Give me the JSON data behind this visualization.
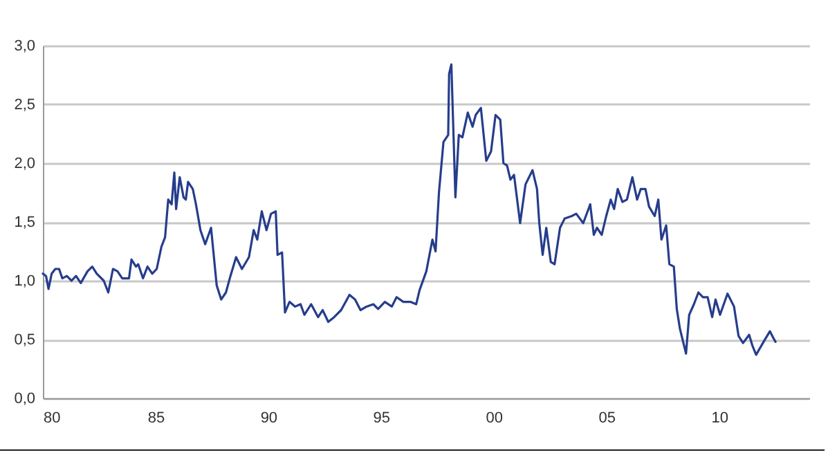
{
  "chart_data": {
    "type": "line",
    "x": [
      1980.0,
      1980.14,
      1980.25,
      1980.39,
      1980.55,
      1980.72,
      1980.86,
      1981.06,
      1981.27,
      1981.47,
      1981.68,
      1981.98,
      1982.19,
      1982.39,
      1982.7,
      1982.9,
      1983.11,
      1983.31,
      1983.52,
      1983.82,
      1983.93,
      1984.13,
      1984.23,
      1984.44,
      1984.64,
      1984.85,
      1985.05,
      1985.26,
      1985.42,
      1985.56,
      1985.71,
      1985.83,
      1985.91,
      1986.07,
      1986.24,
      1986.34,
      1986.44,
      1986.65,
      1986.79,
      1986.99,
      1987.2,
      1987.46,
      1987.71,
      1987.91,
      1988.12,
      1988.32,
      1988.57,
      1988.83,
      1989.14,
      1989.35,
      1989.51,
      1989.71,
      1989.92,
      1990.12,
      1990.33,
      1990.41,
      1990.61,
      1990.74,
      1990.94,
      1991.19,
      1991.43,
      1991.6,
      1991.9,
      1992.21,
      1992.41,
      1992.66,
      1992.92,
      1993.23,
      1993.6,
      1993.85,
      1994.09,
      1994.36,
      1994.66,
      1994.87,
      1995.17,
      1995.48,
      1995.69,
      1995.99,
      1996.3,
      1996.56,
      1996.71,
      1997.01,
      1997.28,
      1997.42,
      1997.57,
      1997.77,
      1997.98,
      1998.02,
      1998.12,
      1998.3,
      1998.45,
      1998.61,
      1998.85,
      1999.06,
      1999.2,
      1999.43,
      1999.67,
      1999.88,
      2000.08,
      2000.29,
      2000.43,
      2000.59,
      2000.74,
      2000.9,
      2001.17,
      2001.41,
      2001.72,
      2001.92,
      2002.02,
      2002.17,
      2002.33,
      2002.53,
      2002.7,
      2002.94,
      2003.15,
      2003.46,
      2003.66,
      2003.97,
      2004.28,
      2004.44,
      2004.58,
      2004.79,
      2004.99,
      2005.19,
      2005.34,
      2005.5,
      2005.71,
      2005.91,
      2006.15,
      2006.36,
      2006.52,
      2006.73,
      2006.89,
      2007.14,
      2007.3,
      2007.44,
      2007.65,
      2007.79,
      2007.99,
      2008.12,
      2008.26,
      2008.53,
      2008.67,
      2008.88,
      2009.08,
      2009.28,
      2009.49,
      2009.69,
      2009.84,
      2010.04,
      2010.37,
      2010.66,
      2010.86,
      2011.06,
      2011.33,
      2011.47,
      2011.64,
      2011.94,
      2012.25,
      2012.41,
      2012.5
    ],
    "series": [
      {
        "color": "#263d8c",
        "values": [
          1.06,
          1.04,
          0.93,
          1.06,
          1.1,
          1.1,
          1.02,
          1.04,
          1.0,
          1.04,
          0.98,
          1.08,
          1.12,
          1.06,
          1.0,
          0.9,
          1.1,
          1.08,
          1.02,
          1.02,
          1.18,
          1.12,
          1.14,
          1.02,
          1.12,
          1.06,
          1.1,
          1.29,
          1.37,
          1.69,
          1.65,
          1.92,
          1.61,
          1.88,
          1.71,
          1.69,
          1.84,
          1.78,
          1.65,
          1.43,
          1.31,
          1.45,
          0.96,
          0.84,
          0.9,
          1.04,
          1.2,
          1.1,
          1.2,
          1.43,
          1.35,
          1.59,
          1.43,
          1.57,
          1.59,
          1.22,
          1.24,
          0.73,
          0.82,
          0.78,
          0.8,
          0.71,
          0.8,
          0.69,
          0.75,
          0.65,
          0.69,
          0.75,
          0.88,
          0.84,
          0.75,
          0.78,
          0.8,
          0.76,
          0.82,
          0.78,
          0.86,
          0.82,
          0.82,
          0.8,
          0.92,
          1.08,
          1.35,
          1.25,
          1.75,
          2.18,
          2.24,
          2.76,
          2.84,
          1.71,
          2.24,
          2.22,
          2.43,
          2.31,
          2.41,
          2.47,
          2.02,
          2.1,
          2.41,
          2.37,
          2.0,
          1.98,
          1.86,
          1.9,
          1.49,
          1.82,
          1.94,
          1.78,
          1.49,
          1.22,
          1.45,
          1.16,
          1.14,
          1.45,
          1.53,
          1.55,
          1.57,
          1.49,
          1.65,
          1.39,
          1.45,
          1.39,
          1.55,
          1.69,
          1.61,
          1.78,
          1.67,
          1.69,
          1.88,
          1.69,
          1.78,
          1.78,
          1.63,
          1.55,
          1.69,
          1.35,
          1.47,
          1.14,
          1.12,
          0.76,
          0.59,
          0.38,
          0.71,
          0.8,
          0.9,
          0.86,
          0.86,
          0.69,
          0.84,
          0.71,
          0.89,
          0.78,
          0.53,
          0.47,
          0.54,
          0.45,
          0.37,
          0.47,
          0.57,
          0.51,
          0.48
        ]
      }
    ],
    "xlim": [
      1980,
      2014
    ],
    "xticks": [
      {
        "value": 1980,
        "label": "80"
      },
      {
        "value": 1985,
        "label": "85"
      },
      {
        "value": 1990,
        "label": "90"
      },
      {
        "value": 1995,
        "label": "95"
      },
      {
        "value": 2000,
        "label": "00"
      },
      {
        "value": 2005,
        "label": "05"
      },
      {
        "value": 2010,
        "label": "10"
      }
    ],
    "ylim": [
      0,
      3
    ],
    "yticks": [
      {
        "value": 0,
        "label": "0,0"
      },
      {
        "value": 0.5,
        "label": "0,5"
      },
      {
        "value": 1,
        "label": "1,0"
      },
      {
        "value": 1.5,
        "label": "1,5"
      },
      {
        "value": 2,
        "label": "2,0"
      },
      {
        "value": 2.5,
        "label": "2,5"
      },
      {
        "value": 3,
        "label": "3,0"
      }
    ],
    "grid": "y"
  }
}
